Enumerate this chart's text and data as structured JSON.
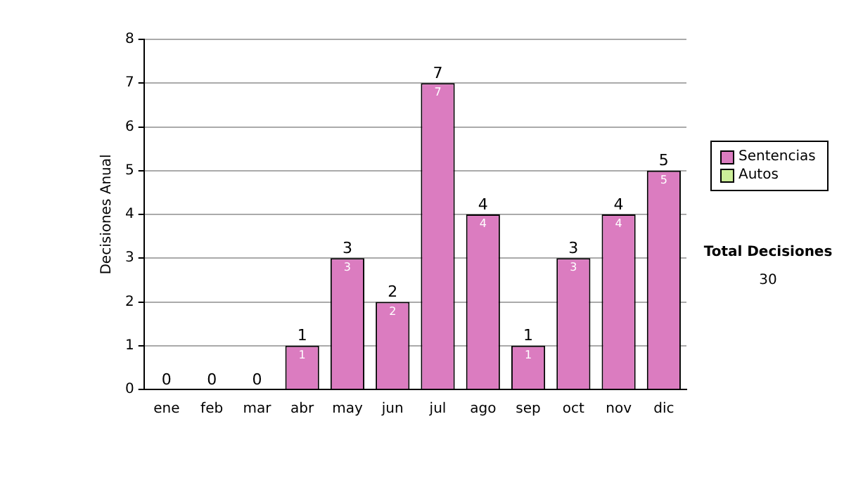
{
  "chart_data": {
    "type": "bar",
    "ylabel": "Decisiones Anual",
    "stacked": true,
    "categories": [
      "ene",
      "feb",
      "mar",
      "abr",
      "may",
      "jun",
      "jul",
      "ago",
      "sep",
      "oct",
      "nov",
      "dic"
    ],
    "series": [
      {
        "name": "Sentencias",
        "color": "#db7cc0",
        "values": [
          0,
          0,
          0,
          1,
          3,
          2,
          7,
          4,
          1,
          3,
          4,
          5
        ],
        "value_labels": [
          null,
          null,
          null,
          "1",
          "3",
          "2",
          "7",
          "4",
          "1",
          "3",
          "4",
          "5"
        ]
      },
      {
        "name": "Autos",
        "color": "#ccee99",
        "values": [
          0,
          0,
          0,
          0,
          0,
          0,
          0,
          0,
          0,
          0,
          0,
          0
        ]
      }
    ],
    "totals": [
      "0",
      "0",
      "0",
      "1",
      "3",
      "2",
      "7",
      "4",
      "1",
      "3",
      "4",
      "5"
    ],
    "ylim": [
      0,
      8
    ],
    "yticks": [
      0,
      1,
      2,
      3,
      4,
      5,
      6,
      7,
      8
    ],
    "grid": "y",
    "legend": "right",
    "annotations": [
      "Total Decisiones",
      "30"
    ]
  }
}
